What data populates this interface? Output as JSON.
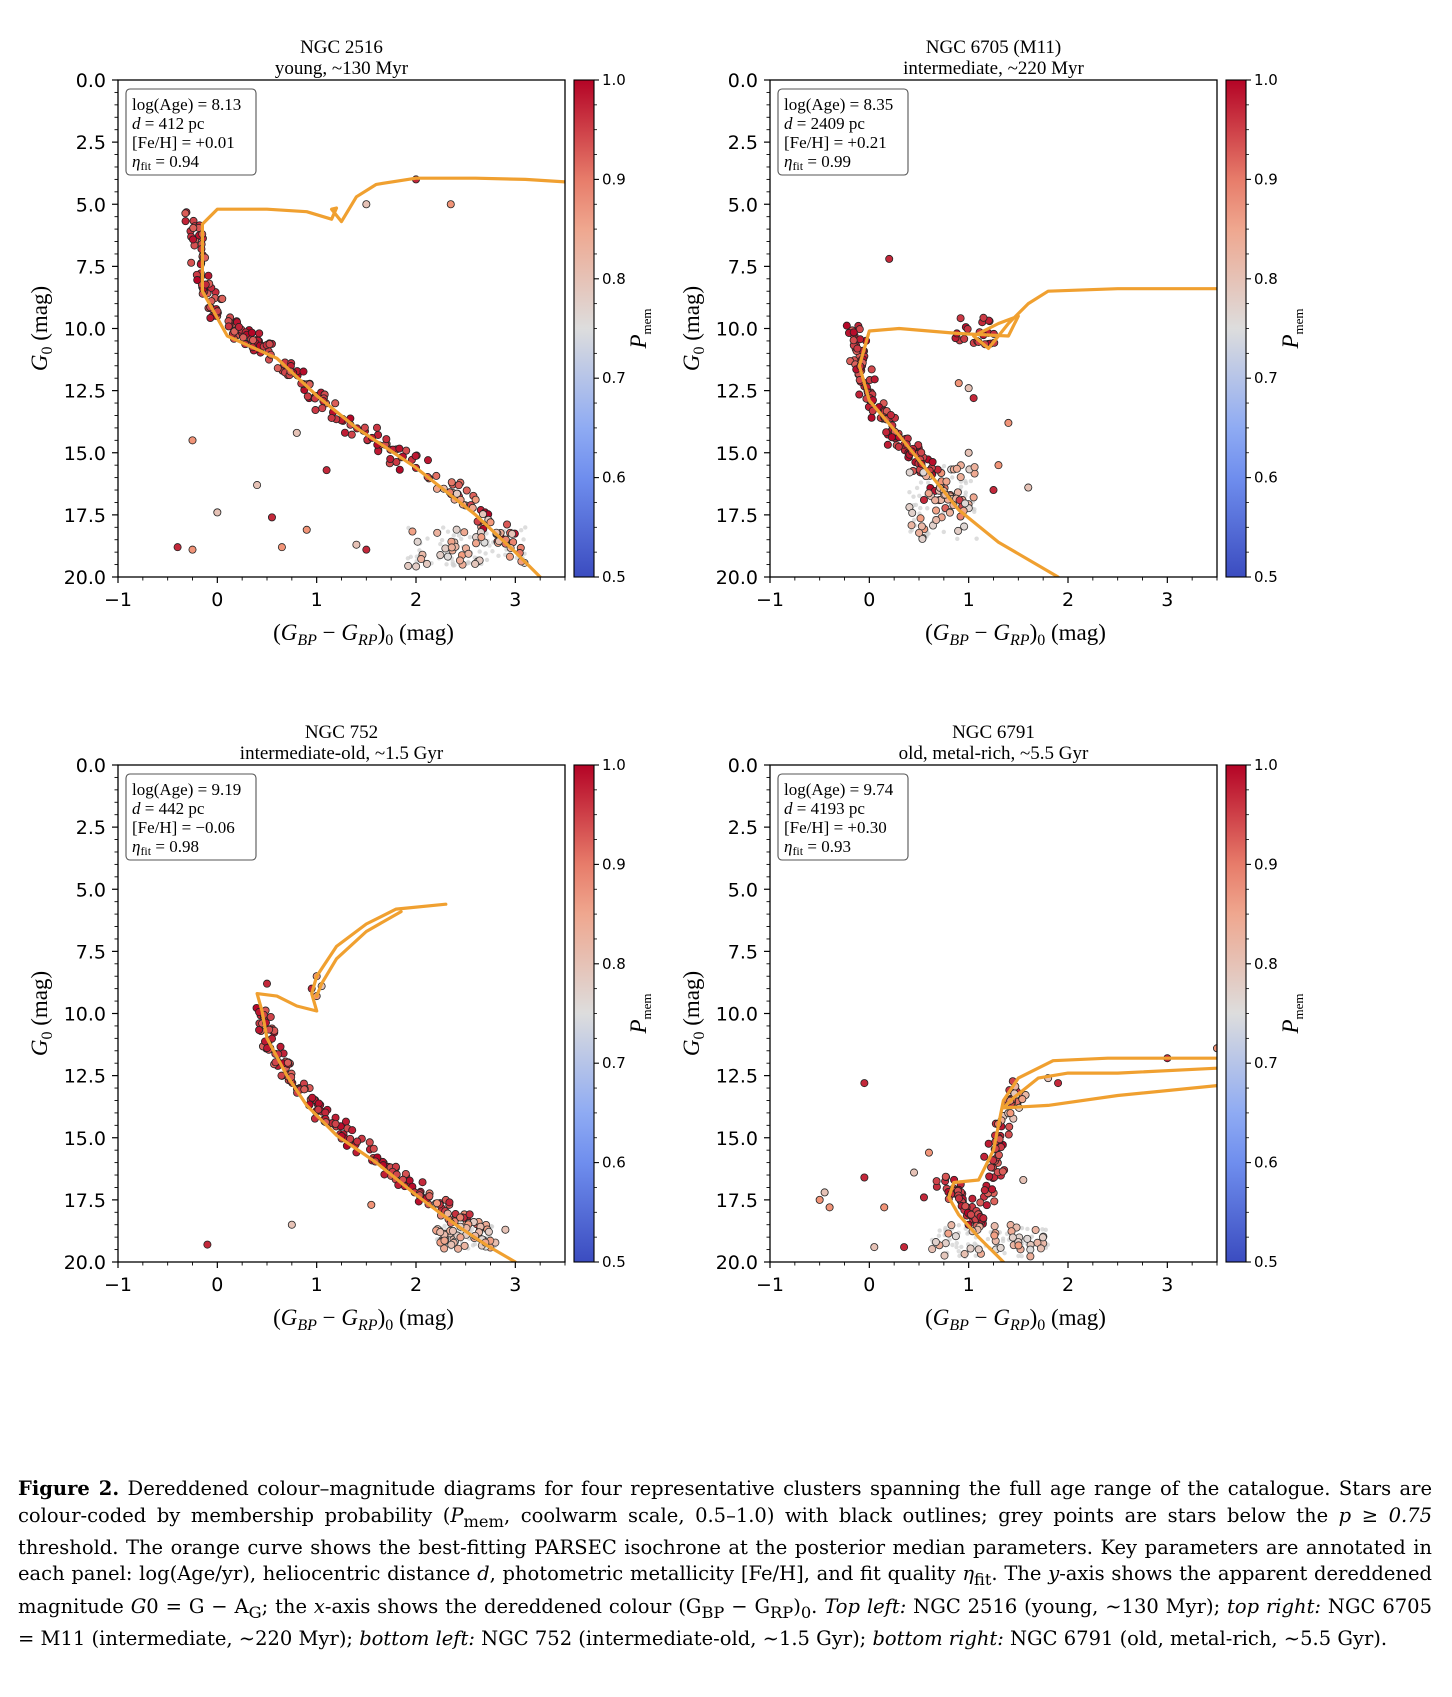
{
  "chart_data": [
    {
      "type": "scatter",
      "title": "NGC 2516",
      "subtitle": "young, ~130 Myr",
      "xlabel": "(G_BP − G_RP)_0 (mag)",
      "ylabel": "G_0 (mag)",
      "xlim": [
        -1,
        3.5
      ],
      "ylim": [
        20,
        0
      ],
      "xticks": [
        "−1",
        "0",
        "1",
        "2",
        "3"
      ],
      "yticks": [
        "0.0",
        "2.5",
        "5.0",
        "7.5",
        "10.0",
        "12.5",
        "15.0",
        "17.5",
        "20.0"
      ],
      "colorbar": {
        "label": "P_mem",
        "range": [
          0.5,
          1.0
        ],
        "ticks": [
          "0.5",
          "0.6",
          "0.7",
          "0.8",
          "0.9",
          "1.0"
        ],
        "colormap": "coolwarm"
      },
      "annotation": [
        "log(Age) = 8.13",
        "d = 412 pc",
        "[Fe/H] = +0.01",
        "η_fit = 0.94"
      ],
      "isochrone": [
        [
          3.5,
          4.1
        ],
        [
          3.1,
          4.0
        ],
        [
          2.6,
          3.95
        ],
        [
          2.0,
          3.95
        ],
        [
          1.6,
          4.2
        ],
        [
          1.4,
          4.7
        ],
        [
          1.25,
          5.7
        ],
        [
          1.15,
          5.2
        ],
        [
          1.2,
          5.15
        ],
        [
          1.15,
          5.6
        ],
        [
          0.9,
          5.3
        ],
        [
          0.5,
          5.2
        ],
        [
          0.0,
          5.2
        ],
        [
          -0.15,
          5.8
        ],
        [
          -0.15,
          8.5
        ],
        [
          0.1,
          10.3
        ],
        [
          0.6,
          11.2
        ],
        [
          1.0,
          12.7
        ],
        [
          1.4,
          14.0
        ],
        [
          2.0,
          15.6
        ],
        [
          2.6,
          17.5
        ],
        [
          3.0,
          19.0
        ],
        [
          3.25,
          20.0
        ]
      ],
      "member_sequence": [
        [
          -0.25,
          5.4
        ],
        [
          -0.15,
          7.5
        ],
        [
          -0.05,
          9.4
        ],
        [
          0.3,
          10.3
        ],
        [
          0.6,
          11.1
        ],
        [
          1.0,
          12.8
        ],
        [
          1.5,
          14.2
        ],
        [
          2.0,
          15.5
        ],
        [
          2.6,
          17.3
        ],
        [
          3.05,
          19.0
        ]
      ],
      "outliers": [
        [
          2.0,
          4.0
        ],
        [
          2.35,
          5.0
        ],
        [
          1.5,
          5.0
        ],
        [
          -0.4,
          18.8
        ],
        [
          -0.25,
          18.9
        ],
        [
          0.0,
          17.4
        ],
        [
          0.55,
          17.6
        ],
        [
          0.9,
          18.1
        ],
        [
          1.4,
          18.7
        ],
        [
          1.5,
          18.9
        ],
        [
          0.65,
          18.8
        ],
        [
          0.4,
          16.3
        ],
        [
          1.1,
          15.7
        ],
        [
          -0.25,
          14.5
        ],
        [
          0.8,
          14.2
        ]
      ],
      "faint_blob": {
        "x": [
          1.9,
          3.1
        ],
        "y": [
          18.0,
          19.6
        ]
      }
    },
    {
      "type": "scatter",
      "title": "NGC 6705 (M11)",
      "subtitle": "intermediate, ~220 Myr",
      "xlabel": "(G_BP − G_RP)_0 (mag)",
      "ylabel": "G_0 (mag)",
      "xlim": [
        -1,
        3.5
      ],
      "ylim": [
        20,
        0
      ],
      "xticks": [
        "−1",
        "0",
        "1",
        "2",
        "3"
      ],
      "yticks": [
        "0.0",
        "2.5",
        "5.0",
        "7.5",
        "10.0",
        "12.5",
        "15.0",
        "17.5",
        "20.0"
      ],
      "colorbar": {
        "label": "P_mem",
        "range": [
          0.5,
          1.0
        ],
        "ticks": [
          "0.5",
          "0.6",
          "0.7",
          "0.8",
          "0.9",
          "1.0"
        ],
        "colormap": "coolwarm"
      },
      "annotation": [
        "log(Age) = 8.35",
        "d = 2409 pc",
        "[Fe/H] = +0.21",
        "η_fit = 0.99"
      ],
      "isochrone": [
        [
          3.5,
          8.4
        ],
        [
          2.5,
          8.4
        ],
        [
          1.8,
          8.5
        ],
        [
          1.6,
          9.0
        ],
        [
          1.4,
          9.8
        ],
        [
          1.2,
          10.8
        ],
        [
          1.05,
          10.3
        ],
        [
          1.3,
          9.8
        ],
        [
          1.5,
          9.5
        ],
        [
          1.4,
          10.3
        ],
        [
          0.9,
          10.2
        ],
        [
          0.3,
          10.0
        ],
        [
          0.0,
          10.1
        ],
        [
          -0.1,
          11.5
        ],
        [
          0.0,
          12.9
        ],
        [
          0.3,
          14.3
        ],
        [
          0.6,
          15.8
        ],
        [
          0.9,
          17.3
        ],
        [
          1.3,
          18.6
        ],
        [
          1.9,
          20.0
        ]
      ],
      "member_sequence": [
        [
          -0.15,
          9.8
        ],
        [
          -0.1,
          11.4
        ],
        [
          0.0,
          12.8
        ],
        [
          0.2,
          14.0
        ],
        [
          0.45,
          15.1
        ],
        [
          0.7,
          16.2
        ],
        [
          0.95,
          17.5
        ]
      ],
      "outliers": [
        [
          0.2,
          7.2
        ],
        [
          0.9,
          12.2
        ],
        [
          1.0,
          12.4
        ],
        [
          1.05,
          12.8
        ],
        [
          1.4,
          13.8
        ],
        [
          1.6,
          16.4
        ],
        [
          1.25,
          16.5
        ],
        [
          1.3,
          15.5
        ],
        [
          1.0,
          15.0
        ],
        [
          0.55,
          16.9
        ]
      ],
      "clump": {
        "x": [
          0.8,
          1.3
        ],
        "y": [
          9.5,
          10.7
        ]
      },
      "faint_blob": {
        "x": [
          0.4,
          1.1
        ],
        "y": [
          15.5,
          18.5
        ]
      }
    },
    {
      "type": "scatter",
      "title": "NGC 752",
      "subtitle": "intermediate-old, ~1.5 Gyr",
      "xlabel": "(G_BP − G_RP)_0 (mag)",
      "ylabel": "G_0 (mag)",
      "xlim": [
        -1,
        3.5
      ],
      "ylim": [
        20,
        0
      ],
      "xticks": [
        "−1",
        "0",
        "1",
        "2",
        "3"
      ],
      "yticks": [
        "0.0",
        "2.5",
        "5.0",
        "7.5",
        "10.0",
        "12.5",
        "15.0",
        "17.5",
        "20.0"
      ],
      "colorbar": {
        "label": "P_mem",
        "range": [
          0.5,
          1.0
        ],
        "ticks": [
          "0.5",
          "0.6",
          "0.7",
          "0.8",
          "0.9",
          "1.0"
        ],
        "colormap": "coolwarm"
      },
      "annotation": [
        "log(Age) = 9.19",
        "d = 442 pc",
        "[Fe/H] = −0.06",
        "η_fit = 0.98"
      ],
      "isochrone": [
        [
          2.3,
          5.6
        ],
        [
          1.8,
          5.8
        ],
        [
          1.5,
          6.4
        ],
        [
          1.2,
          7.3
        ],
        [
          1.0,
          8.5
        ],
        [
          0.95,
          9.2
        ],
        [
          1.0,
          9.9
        ],
        [
          0.8,
          9.7
        ],
        [
          0.6,
          9.3
        ],
        [
          0.4,
          9.2
        ],
        [
          0.45,
          9.9
        ],
        [
          0.5,
          11.0
        ],
        [
          0.7,
          12.5
        ],
        [
          0.9,
          13.7
        ],
        [
          1.2,
          14.9
        ],
        [
          1.6,
          16.0
        ],
        [
          2.0,
          17.3
        ],
        [
          2.4,
          18.5
        ],
        [
          2.7,
          19.3
        ],
        [
          3.0,
          20.0
        ]
      ],
      "isochrone_branch": [
        [
          1.85,
          5.9
        ],
        [
          1.5,
          6.7
        ],
        [
          1.2,
          7.8
        ],
        [
          1.05,
          8.8
        ],
        [
          1.0,
          9.3
        ]
      ],
      "member_sequence": [
        [
          0.45,
          9.9
        ],
        [
          0.55,
          11.3
        ],
        [
          0.8,
          12.9
        ],
        [
          1.1,
          14.3
        ],
        [
          1.5,
          15.5
        ],
        [
          1.9,
          16.8
        ],
        [
          2.3,
          17.9
        ],
        [
          2.7,
          18.8
        ]
      ],
      "outliers": [
        [
          0.5,
          8.8
        ],
        [
          1.0,
          8.5
        ],
        [
          1.05,
          8.9
        ],
        [
          0.95,
          9.0
        ],
        [
          1.0,
          9.3
        ],
        [
          0.75,
          18.5
        ],
        [
          -0.1,
          19.3
        ],
        [
          1.55,
          17.7
        ],
        [
          2.9,
          18.7
        ]
      ],
      "faint_blob": {
        "x": [
          2.2,
          2.8
        ],
        "y": [
          18.5,
          19.5
        ]
      }
    },
    {
      "type": "scatter",
      "title": "NGC 6791",
      "subtitle": "old, metal-rich, ~5.5 Gyr",
      "xlabel": "(G_BP − G_RP)_0 (mag)",
      "ylabel": "G_0 (mag)",
      "xlim": [
        -1,
        3.5
      ],
      "ylim": [
        20,
        0
      ],
      "xticks": [
        "−1",
        "0",
        "1",
        "2",
        "3"
      ],
      "yticks": [
        "0.0",
        "2.5",
        "5.0",
        "7.5",
        "10.0",
        "12.5",
        "15.0",
        "17.5",
        "20.0"
      ],
      "colorbar": {
        "label": "P_mem",
        "range": [
          0.5,
          1.0
        ],
        "ticks": [
          "0.5",
          "0.6",
          "0.7",
          "0.8",
          "0.9",
          "1.0"
        ],
        "colormap": "coolwarm"
      },
      "annotation": [
        "log(Age) = 9.74",
        "d = 4193 pc",
        "[Fe/H] = +0.30",
        "η_fit = 0.93"
      ],
      "isochrone": [
        [
          3.5,
          11.8
        ],
        [
          3.0,
          11.8
        ],
        [
          2.4,
          11.8
        ],
        [
          1.85,
          11.9
        ],
        [
          1.5,
          12.6
        ],
        [
          1.35,
          13.5
        ],
        [
          1.25,
          15.5
        ],
        [
          1.1,
          16.7
        ],
        [
          0.85,
          16.8
        ],
        [
          0.8,
          17.4
        ],
        [
          0.9,
          18.1
        ],
        [
          1.1,
          19.0
        ],
        [
          1.3,
          19.8
        ],
        [
          1.35,
          20.0
        ]
      ],
      "isochrone_branch": [
        [
          3.5,
          12.2
        ],
        [
          2.5,
          12.4
        ],
        [
          2.0,
          12.4
        ],
        [
          1.7,
          12.6
        ],
        [
          1.45,
          13.4
        ],
        [
          1.35,
          13.8
        ],
        [
          1.8,
          13.7
        ],
        [
          2.5,
          13.3
        ],
        [
          3.5,
          12.9
        ]
      ],
      "member_sequence": [
        [
          0.75,
          16.7
        ],
        [
          0.95,
          17.5
        ],
        [
          1.1,
          18.5
        ],
        [
          1.25,
          16.0
        ],
        [
          1.35,
          14.3
        ],
        [
          1.5,
          13.0
        ]
      ],
      "outliers": [
        [
          -0.05,
          12.8
        ],
        [
          -0.5,
          17.5
        ],
        [
          -0.45,
          17.2
        ],
        [
          -0.05,
          16.6
        ],
        [
          0.15,
          17.8
        ],
        [
          0.45,
          16.4
        ],
        [
          0.55,
          17.4
        ],
        [
          0.6,
          15.6
        ],
        [
          1.55,
          16.7
        ],
        [
          3.0,
          11.8
        ],
        [
          3.5,
          11.4
        ],
        [
          1.8,
          12.6
        ],
        [
          1.9,
          12.8
        ],
        [
          -0.4,
          17.8
        ],
        [
          0.05,
          19.4
        ],
        [
          0.35,
          19.4
        ]
      ],
      "faint_blob": {
        "x": [
          0.6,
          1.8
        ],
        "y": [
          18.5,
          19.8
        ]
      }
    }
  ],
  "caption": {
    "label": "Figure 2.",
    "body_1": " Dereddened colour–magnitude diagrams for four representative clusters spanning the full age range of the catalogue. Stars are colour-coded by membership probability (",
    "pmem": "P",
    "pmem_sub": "mem",
    "body_2": ", coolwarm scale, 0.5–1.0) with black outlines; grey points are stars below the ",
    "thresh": "p ≥ 0.75",
    "body_3": " threshold. The orange curve shows the best-fitting PARSEC isochrone at the posterior median parameters. Key parameters are annotated in each panel: log(Age/yr), heliocentric distance ",
    "d": "d",
    "body_4": ", photometric metallicity [Fe/H], and fit quality ",
    "eta": "η",
    "eta_sub": "fit",
    "body_5": ". The ",
    "y": "y",
    "body_6": "-axis shows the apparent dereddened magnitude ",
    "g0": "G",
    "g0_eq": "0 = G − A",
    "ag_sub": "G",
    "body_7": "; the ",
    "x": "x",
    "body_8": "-axis shows the dereddened colour (G",
    "bp": "BP",
    "minus": " − G",
    "rp": "RP",
    "body_9": ")",
    "zero": "0",
    "body_10": ". ",
    "tl": "Top left:",
    "tl_txt": " NGC 2516 (young, ∼130 Myr); ",
    "tr": "top right:",
    "tr_txt": " NGC 6705 = M11 (intermediate, ∼220 Myr); ",
    "bl": "bottom left:",
    "bl_txt": " NGC 752 (intermediate-old, ∼1.5 Gyr); ",
    "br": "bottom right:",
    "br_txt": " NGC 6791 (old, metal-rich, ∼5.5 Gyr)."
  },
  "colors": {
    "isochrone": "#f0a030",
    "member_dark": "#b40426",
    "grey_point": "#cfcfcf"
  }
}
